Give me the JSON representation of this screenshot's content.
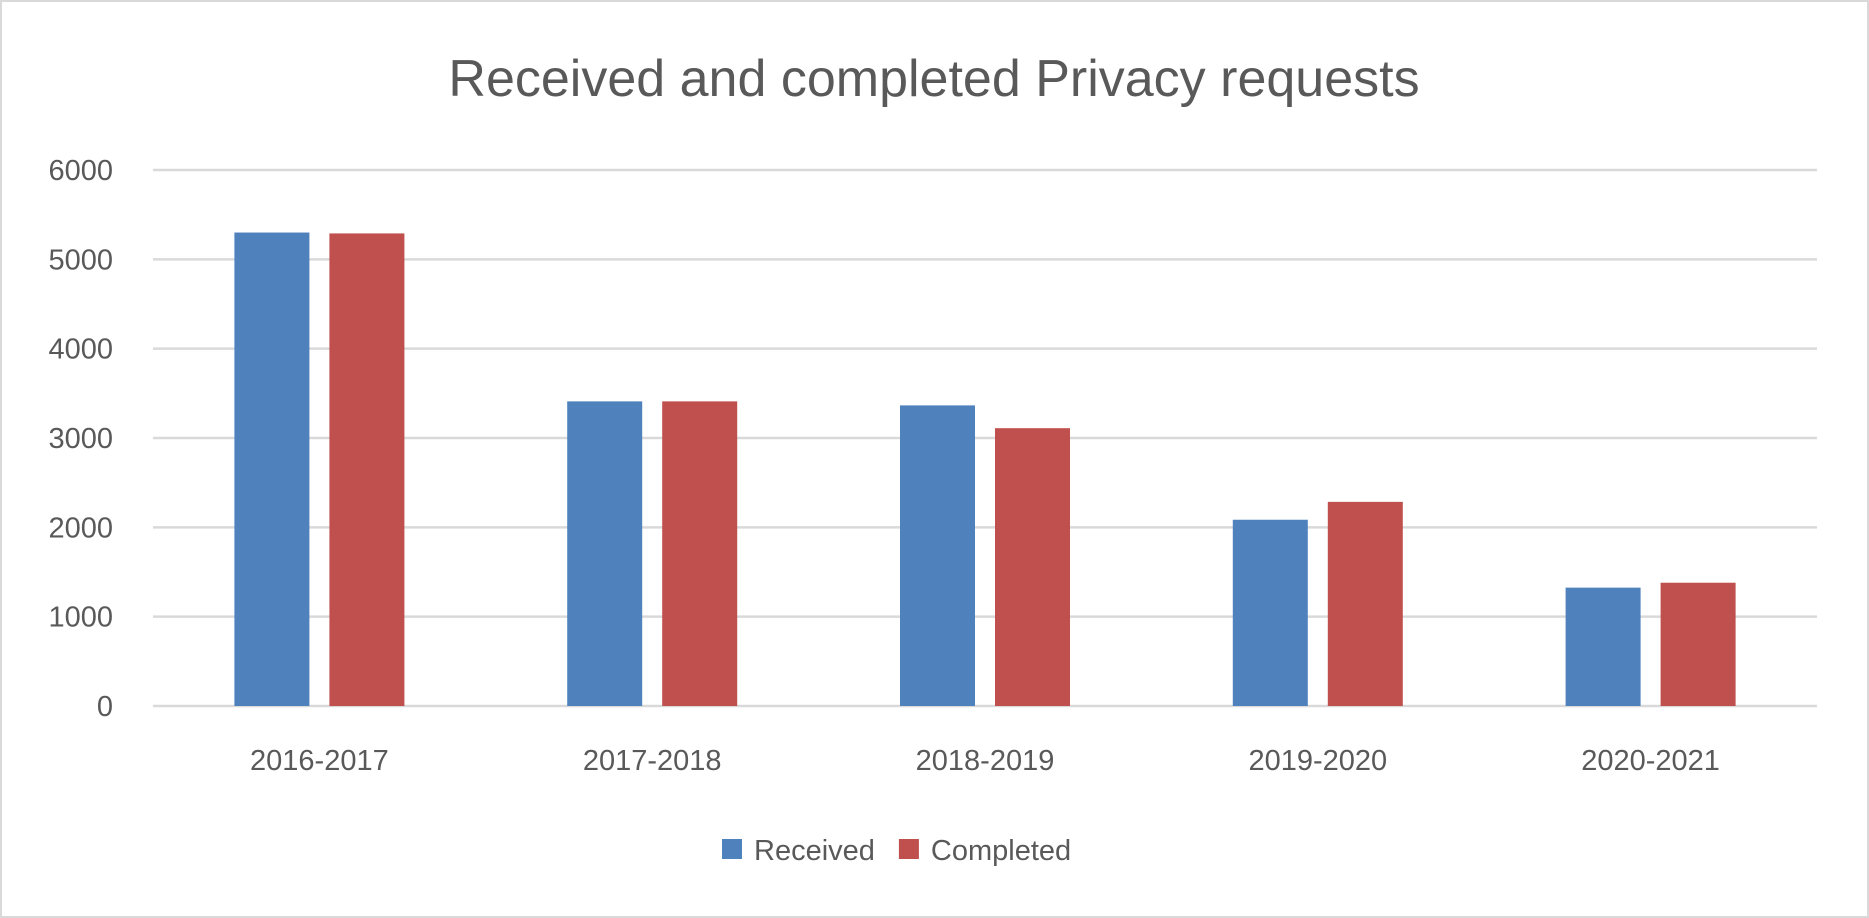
{
  "chart_data": {
    "type": "bar",
    "title": "Received and completed Privacy requests",
    "xlabel": "",
    "ylabel": "",
    "categories": [
      "2016-2017",
      "2017-2018",
      "2018-2019",
      "2019-2020",
      "2020-2021"
    ],
    "series": [
      {
        "name": "Received",
        "color": "#4F81BD",
        "values": [
          5300,
          3410,
          3365,
          2085,
          1325
        ]
      },
      {
        "name": "Completed",
        "color": "#C0504D",
        "values": [
          5290,
          3410,
          3110,
          2285,
          1380
        ]
      }
    ],
    "ylim": [
      0,
      6000
    ],
    "yticks": [
      "0",
      "1000",
      "2000",
      "3000",
      "4000",
      "5000",
      "6000"
    ],
    "grid": true,
    "legend_position": "bottom"
  }
}
